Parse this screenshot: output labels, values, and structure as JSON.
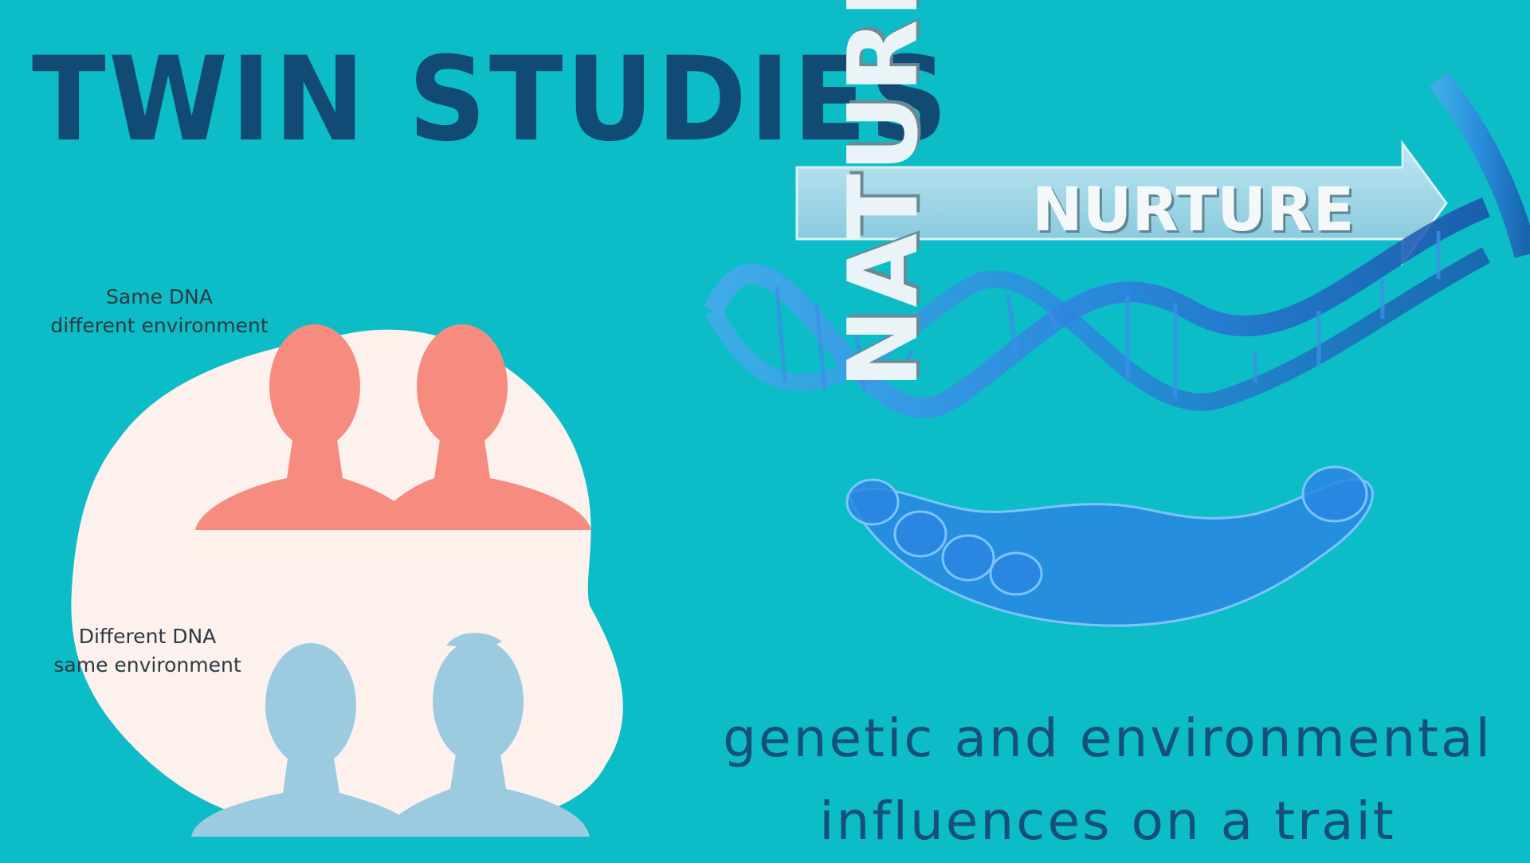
{
  "title": "TWIN STUDIES",
  "groups": [
    {
      "label_line1": "Same DNA",
      "label_line2": "different environment",
      "silhouette_color": "#f68c80"
    },
    {
      "label_line1": "Different DNA",
      "label_line2": "same environment",
      "silhouette_color": "#9ccbe0"
    }
  ],
  "illustration": {
    "word_nature": "NATURE",
    "word_nurture": "NURTURE",
    "icons": [
      "dna-helix-icon",
      "open-hand-icon",
      "arrow-icon"
    ]
  },
  "subtitle": {
    "line1": "genetic and environmental",
    "line2": "influences on a trait"
  },
  "colors": {
    "background": "#0cbcc6",
    "title": "#114a73",
    "blob": "#fdf1ee",
    "dna": "#2f7fe0"
  }
}
